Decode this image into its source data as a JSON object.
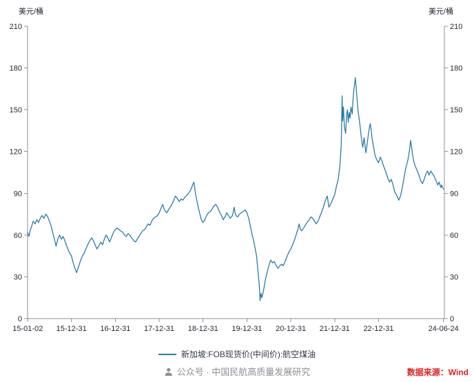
{
  "legend": {
    "label": "新加坡:FOB现货价(中间价):航空煤油",
    "color": "#2a7ba6"
  },
  "footer": {
    "watermark": "公众号 · 中国民航高质量发展研究",
    "watermark_color": "#8c9096",
    "source": "数据来源：Wind",
    "source_color": "#e01f1f"
  },
  "chart_data": {
    "type": "line",
    "title": "",
    "xlabel": "",
    "ylabel": "美元/桶",
    "ylabel_right": "美元/桶",
    "xlim": [
      2015.0,
      2024.5
    ],
    "ylim": [
      0,
      210
    ],
    "grid": false,
    "legend_position": "bottom",
    "y_ticks": [
      0,
      30,
      60,
      90,
      120,
      150,
      180,
      210
    ],
    "x_ticks": [
      {
        "x": 2015.005,
        "label": "15-01-02"
      },
      {
        "x": 2016.0,
        "label": "15-12-31"
      },
      {
        "x": 2017.0,
        "label": "16-12-31"
      },
      {
        "x": 2018.0,
        "label": "17-12-31"
      },
      {
        "x": 2019.0,
        "label": "18-12-31"
      },
      {
        "x": 2020.0,
        "label": "19-12-31"
      },
      {
        "x": 2021.0,
        "label": "20-12-31"
      },
      {
        "x": 2022.0,
        "label": "21-12-31"
      },
      {
        "x": 2023.0,
        "label": "22-12-31"
      },
      {
        "x": 2024.48,
        "label": "24-06-24"
      }
    ],
    "series": [
      {
        "name": "新加坡:FOB现货价(中间价):航空煤油",
        "color": "#2a7ba6",
        "points": [
          [
            2015.0,
            62
          ],
          [
            2015.03,
            59
          ],
          [
            2015.06,
            63
          ],
          [
            2015.09,
            66
          ],
          [
            2015.13,
            70
          ],
          [
            2015.17,
            68
          ],
          [
            2015.21,
            71
          ],
          [
            2015.25,
            69
          ],
          [
            2015.29,
            72
          ],
          [
            2015.33,
            74
          ],
          [
            2015.37,
            72
          ],
          [
            2015.42,
            75
          ],
          [
            2015.46,
            73
          ],
          [
            2015.5,
            70
          ],
          [
            2015.54,
            66
          ],
          [
            2015.58,
            61
          ],
          [
            2015.62,
            56
          ],
          [
            2015.65,
            52
          ],
          [
            2015.69,
            57
          ],
          [
            2015.73,
            60
          ],
          [
            2015.77,
            57
          ],
          [
            2015.81,
            59
          ],
          [
            2015.85,
            56
          ],
          [
            2015.88,
            53
          ],
          [
            2015.92,
            50
          ],
          [
            2015.96,
            47
          ],
          [
            2016.0,
            45
          ],
          [
            2016.04,
            40
          ],
          [
            2016.08,
            36
          ],
          [
            2016.12,
            33
          ],
          [
            2016.16,
            37
          ],
          [
            2016.21,
            42
          ],
          [
            2016.25,
            45
          ],
          [
            2016.29,
            47
          ],
          [
            2016.33,
            50
          ],
          [
            2016.37,
            53
          ],
          [
            2016.42,
            56
          ],
          [
            2016.46,
            58
          ],
          [
            2016.5,
            56
          ],
          [
            2016.54,
            53
          ],
          [
            2016.58,
            50
          ],
          [
            2016.62,
            52
          ],
          [
            2016.67,
            55
          ],
          [
            2016.71,
            53
          ],
          [
            2016.75,
            57
          ],
          [
            2016.79,
            60
          ],
          [
            2016.83,
            58
          ],
          [
            2016.87,
            55
          ],
          [
            2016.92,
            59
          ],
          [
            2016.96,
            62
          ],
          [
            2017.0,
            64
          ],
          [
            2017.04,
            65
          ],
          [
            2017.08,
            64
          ],
          [
            2017.12,
            63
          ],
          [
            2017.17,
            62
          ],
          [
            2017.21,
            60
          ],
          [
            2017.25,
            59
          ],
          [
            2017.29,
            61
          ],
          [
            2017.33,
            60
          ],
          [
            2017.37,
            58
          ],
          [
            2017.42,
            56
          ],
          [
            2017.46,
            55
          ],
          [
            2017.5,
            57
          ],
          [
            2017.54,
            59
          ],
          [
            2017.58,
            61
          ],
          [
            2017.62,
            63
          ],
          [
            2017.67,
            64
          ],
          [
            2017.71,
            66
          ],
          [
            2017.75,
            68
          ],
          [
            2017.79,
            67
          ],
          [
            2017.83,
            70
          ],
          [
            2017.87,
            72
          ],
          [
            2017.92,
            73
          ],
          [
            2017.96,
            74
          ],
          [
            2018.0,
            76
          ],
          [
            2018.04,
            79
          ],
          [
            2018.08,
            82
          ],
          [
            2018.12,
            78
          ],
          [
            2018.17,
            76
          ],
          [
            2018.21,
            78
          ],
          [
            2018.25,
            80
          ],
          [
            2018.29,
            82
          ],
          [
            2018.33,
            85
          ],
          [
            2018.37,
            88
          ],
          [
            2018.42,
            86
          ],
          [
            2018.46,
            84
          ],
          [
            2018.5,
            86
          ],
          [
            2018.54,
            85
          ],
          [
            2018.58,
            87
          ],
          [
            2018.62,
            88
          ],
          [
            2018.67,
            90
          ],
          [
            2018.71,
            92
          ],
          [
            2018.75,
            95
          ],
          [
            2018.79,
            98
          ],
          [
            2018.81,
            94
          ],
          [
            2018.83,
            89
          ],
          [
            2018.87,
            83
          ],
          [
            2018.92,
            76
          ],
          [
            2018.96,
            71
          ],
          [
            2019.0,
            69
          ],
          [
            2019.04,
            71
          ],
          [
            2019.08,
            74
          ],
          [
            2019.12,
            76
          ],
          [
            2019.17,
            77
          ],
          [
            2019.21,
            79
          ],
          [
            2019.25,
            81
          ],
          [
            2019.29,
            82
          ],
          [
            2019.33,
            80
          ],
          [
            2019.37,
            77
          ],
          [
            2019.42,
            74
          ],
          [
            2019.46,
            71
          ],
          [
            2019.5,
            73
          ],
          [
            2019.54,
            76
          ],
          [
            2019.58,
            74
          ],
          [
            2019.62,
            72
          ],
          [
            2019.67,
            74
          ],
          [
            2019.71,
            80
          ],
          [
            2019.73,
            76
          ],
          [
            2019.75,
            74
          ],
          [
            2019.79,
            73
          ],
          [
            2019.83,
            75
          ],
          [
            2019.87,
            76
          ],
          [
            2019.92,
            77
          ],
          [
            2019.96,
            78
          ],
          [
            2020.0,
            76
          ],
          [
            2020.04,
            72
          ],
          [
            2020.08,
            66
          ],
          [
            2020.12,
            60
          ],
          [
            2020.16,
            55
          ],
          [
            2020.19,
            50
          ],
          [
            2020.22,
            45
          ],
          [
            2020.25,
            35
          ],
          [
            2020.27,
            28
          ],
          [
            2020.29,
            20
          ],
          [
            2020.3,
            13
          ],
          [
            2020.32,
            18
          ],
          [
            2020.34,
            15
          ],
          [
            2020.37,
            19
          ],
          [
            2020.4,
            24
          ],
          [
            2020.42,
            28
          ],
          [
            2020.46,
            33
          ],
          [
            2020.5,
            38
          ],
          [
            2020.54,
            42
          ],
          [
            2020.58,
            40
          ],
          [
            2020.62,
            41
          ],
          [
            2020.67,
            38
          ],
          [
            2020.71,
            36
          ],
          [
            2020.75,
            38
          ],
          [
            2020.79,
            39
          ],
          [
            2020.83,
            38
          ],
          [
            2020.87,
            41
          ],
          [
            2020.92,
            45
          ],
          [
            2020.96,
            48
          ],
          [
            2021.0,
            50
          ],
          [
            2021.04,
            53
          ],
          [
            2021.08,
            56
          ],
          [
            2021.12,
            60
          ],
          [
            2021.17,
            65
          ],
          [
            2021.19,
            68
          ],
          [
            2021.22,
            64
          ],
          [
            2021.25,
            63
          ],
          [
            2021.29,
            65
          ],
          [
            2021.33,
            67
          ],
          [
            2021.37,
            69
          ],
          [
            2021.42,
            71
          ],
          [
            2021.46,
            73
          ],
          [
            2021.5,
            72
          ],
          [
            2021.54,
            70
          ],
          [
            2021.58,
            68
          ],
          [
            2021.62,
            70
          ],
          [
            2021.67,
            74
          ],
          [
            2021.71,
            77
          ],
          [
            2021.75,
            81
          ],
          [
            2021.79,
            85
          ],
          [
            2021.83,
            88
          ],
          [
            2021.85,
            84
          ],
          [
            2021.87,
            80
          ],
          [
            2021.92,
            83
          ],
          [
            2021.96,
            86
          ],
          [
            2022.0,
            89
          ],
          [
            2022.04,
            95
          ],
          [
            2022.08,
            100
          ],
          [
            2022.1,
            105
          ],
          [
            2022.12,
            110
          ],
          [
            2022.15,
            125
          ],
          [
            2022.17,
            160
          ],
          [
            2022.18,
            142
          ],
          [
            2022.2,
            152
          ],
          [
            2022.22,
            138
          ],
          [
            2022.25,
            133
          ],
          [
            2022.27,
            146
          ],
          [
            2022.29,
            150
          ],
          [
            2022.31,
            141
          ],
          [
            2022.33,
            148
          ],
          [
            2022.35,
            144
          ],
          [
            2022.37,
            152
          ],
          [
            2022.4,
            147
          ],
          [
            2022.42,
            158
          ],
          [
            2022.44,
            165
          ],
          [
            2022.46,
            170
          ],
          [
            2022.47,
            173
          ],
          [
            2022.49,
            166
          ],
          [
            2022.51,
            158
          ],
          [
            2022.53,
            150
          ],
          [
            2022.56,
            143
          ],
          [
            2022.58,
            138
          ],
          [
            2022.6,
            132
          ],
          [
            2022.62,
            127
          ],
          [
            2022.64,
            123
          ],
          [
            2022.67,
            130
          ],
          [
            2022.69,
            125
          ],
          [
            2022.71,
            119
          ],
          [
            2022.73,
            123
          ],
          [
            2022.75,
            128
          ],
          [
            2022.77,
            133
          ],
          [
            2022.79,
            137
          ],
          [
            2022.81,
            140
          ],
          [
            2022.83,
            136
          ],
          [
            2022.85,
            130
          ],
          [
            2022.87,
            126
          ],
          [
            2022.9,
            121
          ],
          [
            2022.92,
            117
          ],
          [
            2022.96,
            114
          ],
          [
            2023.0,
            112
          ],
          [
            2023.04,
            116
          ],
          [
            2023.08,
            113
          ],
          [
            2023.12,
            109
          ],
          [
            2023.17,
            105
          ],
          [
            2023.21,
            101
          ],
          [
            2023.25,
            98
          ],
          [
            2023.29,
            100
          ],
          [
            2023.33,
            96
          ],
          [
            2023.37,
            91
          ],
          [
            2023.42,
            88
          ],
          [
            2023.46,
            85
          ],
          [
            2023.5,
            88
          ],
          [
            2023.54,
            94
          ],
          [
            2023.58,
            101
          ],
          [
            2023.62,
            108
          ],
          [
            2023.67,
            114
          ],
          [
            2023.69,
            118
          ],
          [
            2023.71,
            122
          ],
          [
            2023.73,
            128
          ],
          [
            2023.75,
            124
          ],
          [
            2023.77,
            119
          ],
          [
            2023.79,
            115
          ],
          [
            2023.81,
            112
          ],
          [
            2023.83,
            110
          ],
          [
            2023.87,
            107
          ],
          [
            2023.92,
            103
          ],
          [
            2023.96,
            99
          ],
          [
            2024.0,
            97
          ],
          [
            2024.04,
            100
          ],
          [
            2024.08,
            104
          ],
          [
            2024.12,
            106
          ],
          [
            2024.15,
            103
          ],
          [
            2024.19,
            106
          ],
          [
            2024.23,
            104
          ],
          [
            2024.27,
            102
          ],
          [
            2024.31,
            99
          ],
          [
            2024.35,
            96
          ],
          [
            2024.38,
            98
          ],
          [
            2024.42,
            94
          ],
          [
            2024.44,
            96
          ],
          [
            2024.46,
            94
          ],
          [
            2024.48,
            93
          ]
        ]
      }
    ]
  }
}
